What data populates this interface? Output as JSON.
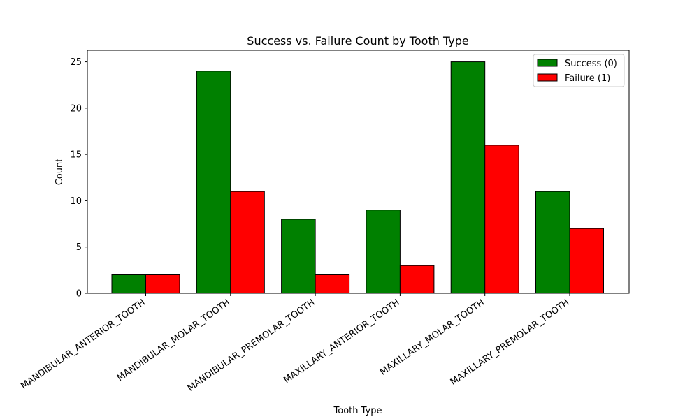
{
  "chart_data": {
    "type": "bar",
    "title": "Success vs. Failure Count by Tooth Type",
    "xlabel": "Tooth Type",
    "ylabel": "Count",
    "categories": [
      "MANDIBULAR_ANTERIOR_TOOTH",
      "MANDIBULAR_MOLAR_TOOTH",
      "MANDIBULAR_PREMOLAR_TOOTH",
      "MAXILLARY_ANTERIOR_TOOTH",
      "MAXILLARY_MOLAR_TOOTH",
      "MAXILLARY_PREMOLAR_TOOTH"
    ],
    "series": [
      {
        "name": "Success (0)",
        "values": [
          2,
          24,
          8,
          9,
          25,
          11
        ],
        "color": "#008000"
      },
      {
        "name": "Failure (1)",
        "values": [
          2,
          11,
          2,
          3,
          16,
          7
        ],
        "color": "#ff0000"
      }
    ],
    "ylim": [
      0,
      26.25
    ],
    "yticks": [
      "0",
      "5",
      "10",
      "15",
      "20",
      "25"
    ],
    "grid": false,
    "legend": "top-right"
  }
}
